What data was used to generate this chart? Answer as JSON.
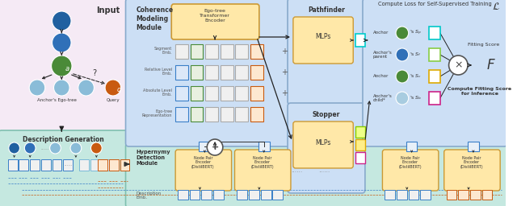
{
  "bg_color": "#ffffff",
  "node_colors": {
    "dark_blue": "#2060a0",
    "medium_blue": "#3070b8",
    "green": "#4a8a38",
    "light_blue": "#8abcd8",
    "orange": "#c85a10",
    "light_blue2": "#a8cce0"
  },
  "coherence_emb_rows": [
    {
      "label": "Segment\nEmb.",
      "box_ec": [
        "#aaaaaa",
        "#4a8a38",
        "#aaaaaa",
        "#aaaaaa",
        "#aaaaaa",
        "#c85a10"
      ],
      "box_fc": [
        "#f0f0f0",
        "#e8f0e0",
        "#f0f0f0",
        "#f0f0f0",
        "#f0f0f0",
        "#fde8d0"
      ]
    },
    {
      "label": "Relative Level\nEmb.",
      "box_ec": [
        "#3a7fc8",
        "#4a8a38",
        "#aaaaaa",
        "#aaaaaa",
        "#aaaaaa",
        "#c85a10"
      ],
      "box_fc": [
        "#dce8f8",
        "#e8f0e0",
        "#f0f0f0",
        "#f0f0f0",
        "#f0f0f0",
        "#fde8d0"
      ]
    },
    {
      "label": "Absolute Level\nEmb.",
      "box_ec": [
        "#3a7fc8",
        "#4a8a38",
        "#aaaaaa",
        "#aaaaaa",
        "#aaaaaa",
        "#c85a10"
      ],
      "box_fc": [
        "#dce8f8",
        "#e8f0e0",
        "#f0f0f0",
        "#f0f0f0",
        "#f0f0f0",
        "#fde8d0"
      ]
    },
    {
      "label": "Ego-tree\nRepresentation",
      "box_ec": [
        "#3a7fc8",
        "#4a8a38",
        "#aaaaaa",
        "#aaaaaa",
        "#aaaaaa",
        "#c85a10"
      ],
      "box_fc": [
        "#dce8f8",
        "#e8f0e0",
        "#f0f0f0",
        "#f0f0f0",
        "#f0f0f0",
        "#fde8d0"
      ]
    }
  ],
  "anchor_rows": [
    {
      "label": "Anchor",
      "circle_color": "#4a8a38",
      "s_label": "S_p",
      "sq_ec": "#00c8c8"
    },
    {
      "label": "Anchor's\nparent",
      "circle_color": "#3070b8",
      "s_label": "S_f",
      "sq_ec": "#88cc44"
    },
    {
      "label": "Anchor",
      "circle_color": "#4a8a38",
      "s_label": "S_c",
      "sq_ec": "#ddaa00"
    },
    {
      "label": "Anchor's\nchild*",
      "circle_color": "#a8cce0",
      "s_label": "S_b",
      "sq_ec": "#cc2288"
    }
  ]
}
